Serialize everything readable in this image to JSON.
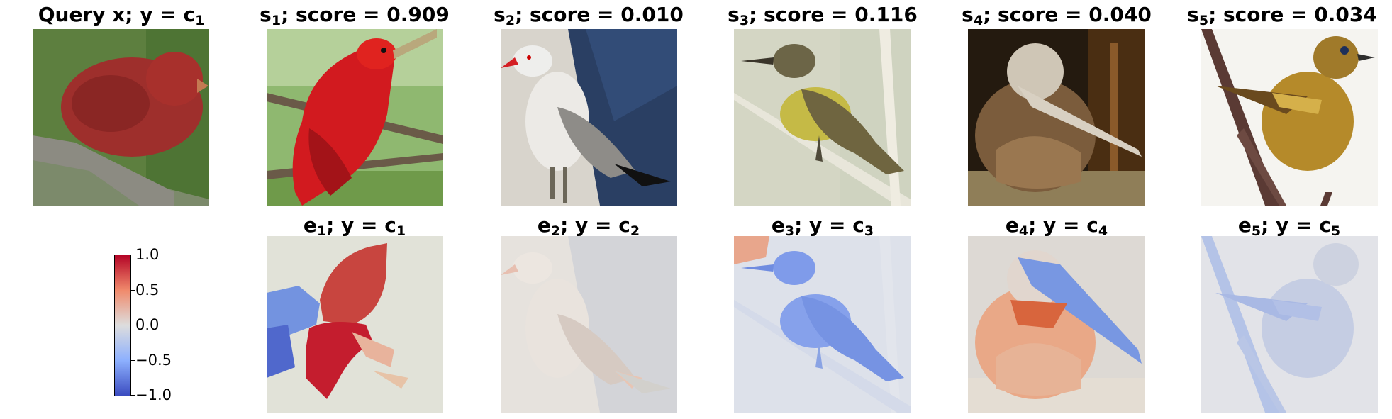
{
  "top_row": [
    {
      "label": "Query x; y = c",
      "sub": "1",
      "suffix": ""
    },
    {
      "label": "s",
      "sub": "1",
      "suffix": "; score = 0.909"
    },
    {
      "label": "s",
      "sub": "2",
      "suffix": "; score = 0.010"
    },
    {
      "label": "s",
      "sub": "3",
      "suffix": "; score = 0.116"
    },
    {
      "label": "s",
      "sub": "4",
      "suffix": "; score = 0.040"
    },
    {
      "label": "s",
      "sub": "5",
      "suffix": "; score = 0.034"
    }
  ],
  "bottom_row": [
    {
      "label": "e",
      "sub": "1",
      "mid": "; y = c",
      "sub2": "1"
    },
    {
      "label": "e",
      "sub": "2",
      "mid": "; y = c",
      "sub2": "2"
    },
    {
      "label": "e",
      "sub": "3",
      "mid": "; y = c",
      "sub2": "3"
    },
    {
      "label": "e",
      "sub": "4",
      "mid": "; y = c",
      "sub2": "4"
    },
    {
      "label": "e",
      "sub": "5",
      "mid": "; y = c",
      "sub2": "5"
    }
  ],
  "colorbar": {
    "colormap": "coolwarm",
    "min": -1.0,
    "max": 1.0,
    "ticks": [
      "1.0",
      "0.5",
      "0.0",
      "−0.5",
      "−1.0"
    ]
  },
  "colors": {
    "coolwarm_low": "#3b4cc0",
    "coolwarm_mid": "#dddddd",
    "coolwarm_high": "#b40426"
  }
}
